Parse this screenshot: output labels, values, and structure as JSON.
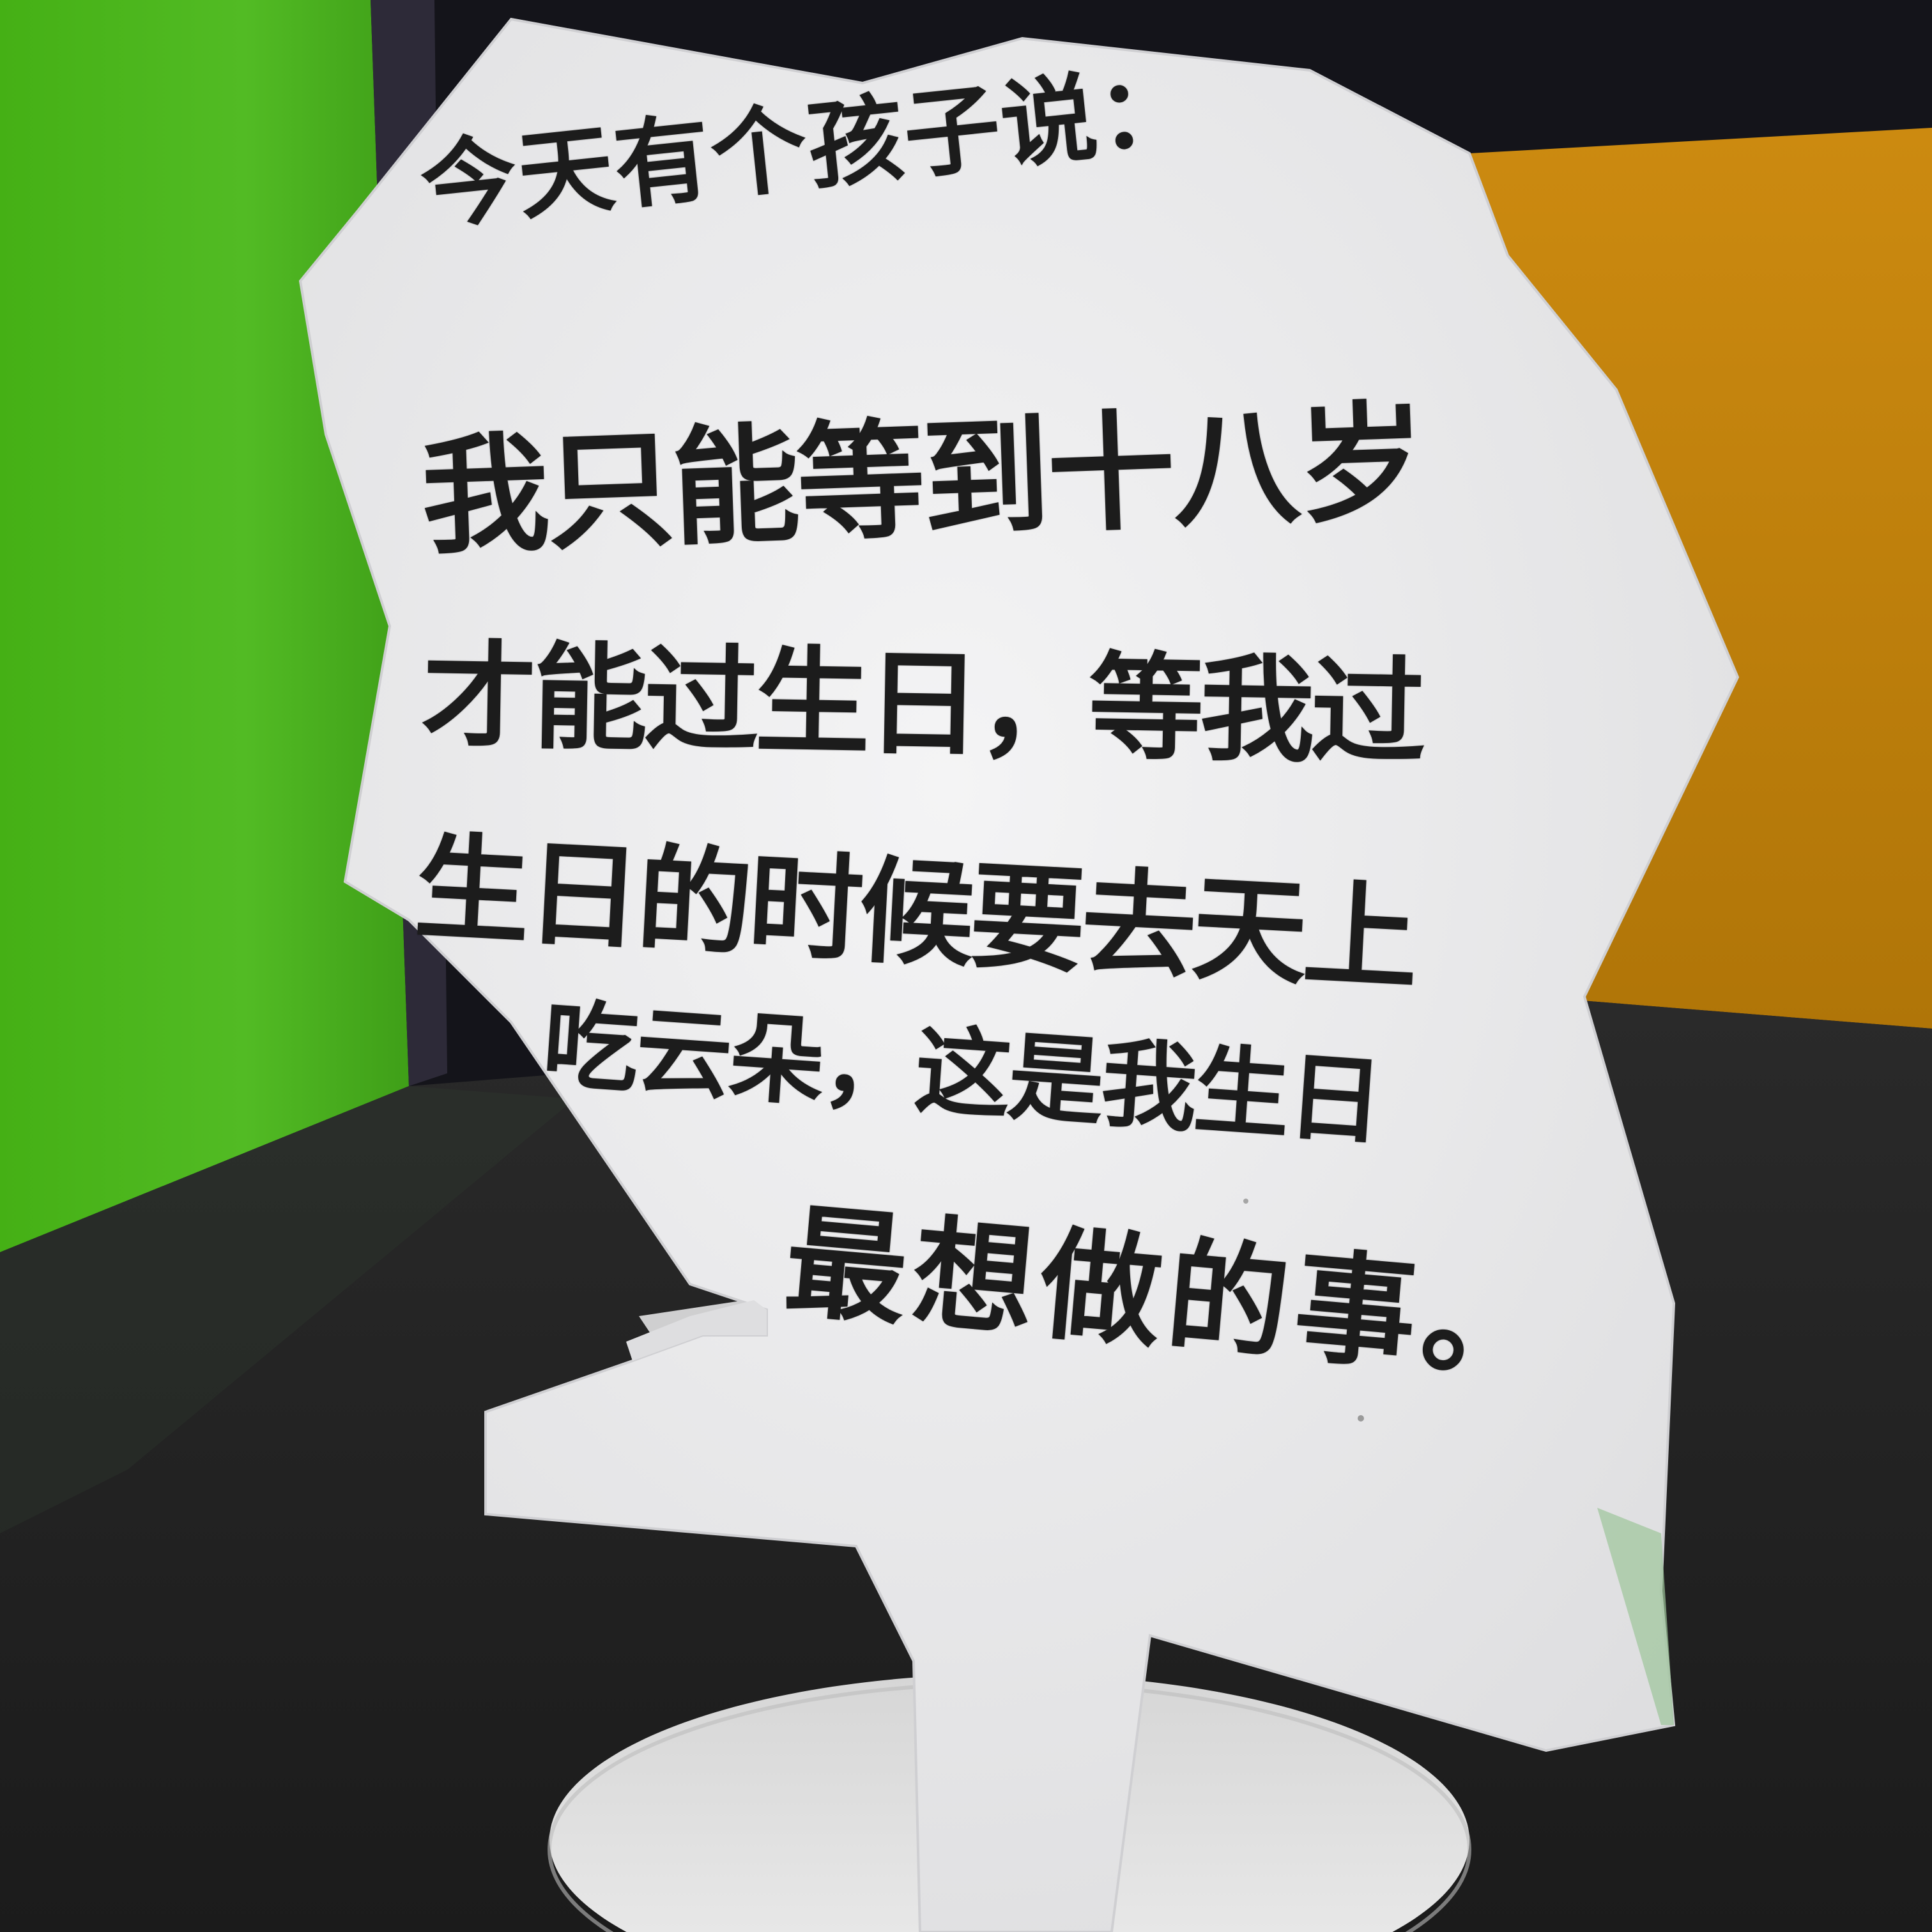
{
  "sign": {
    "lines": [
      "今天有个孩子说：",
      "我只能等到十八岁",
      "才能过生日，等我过",
      "生日的时候要去天上",
      "吃云朵，这是我生日",
      "最想做的事。"
    ]
  },
  "colors": {
    "green_wall": "#4fb81f",
    "orange_wall": "#c8840c",
    "dark_ceiling": "#14141a",
    "floor": "#262626",
    "sign_board": "#efeff0",
    "ink": "#1c1c1c",
    "base_disc": "#e4e4e4"
  }
}
